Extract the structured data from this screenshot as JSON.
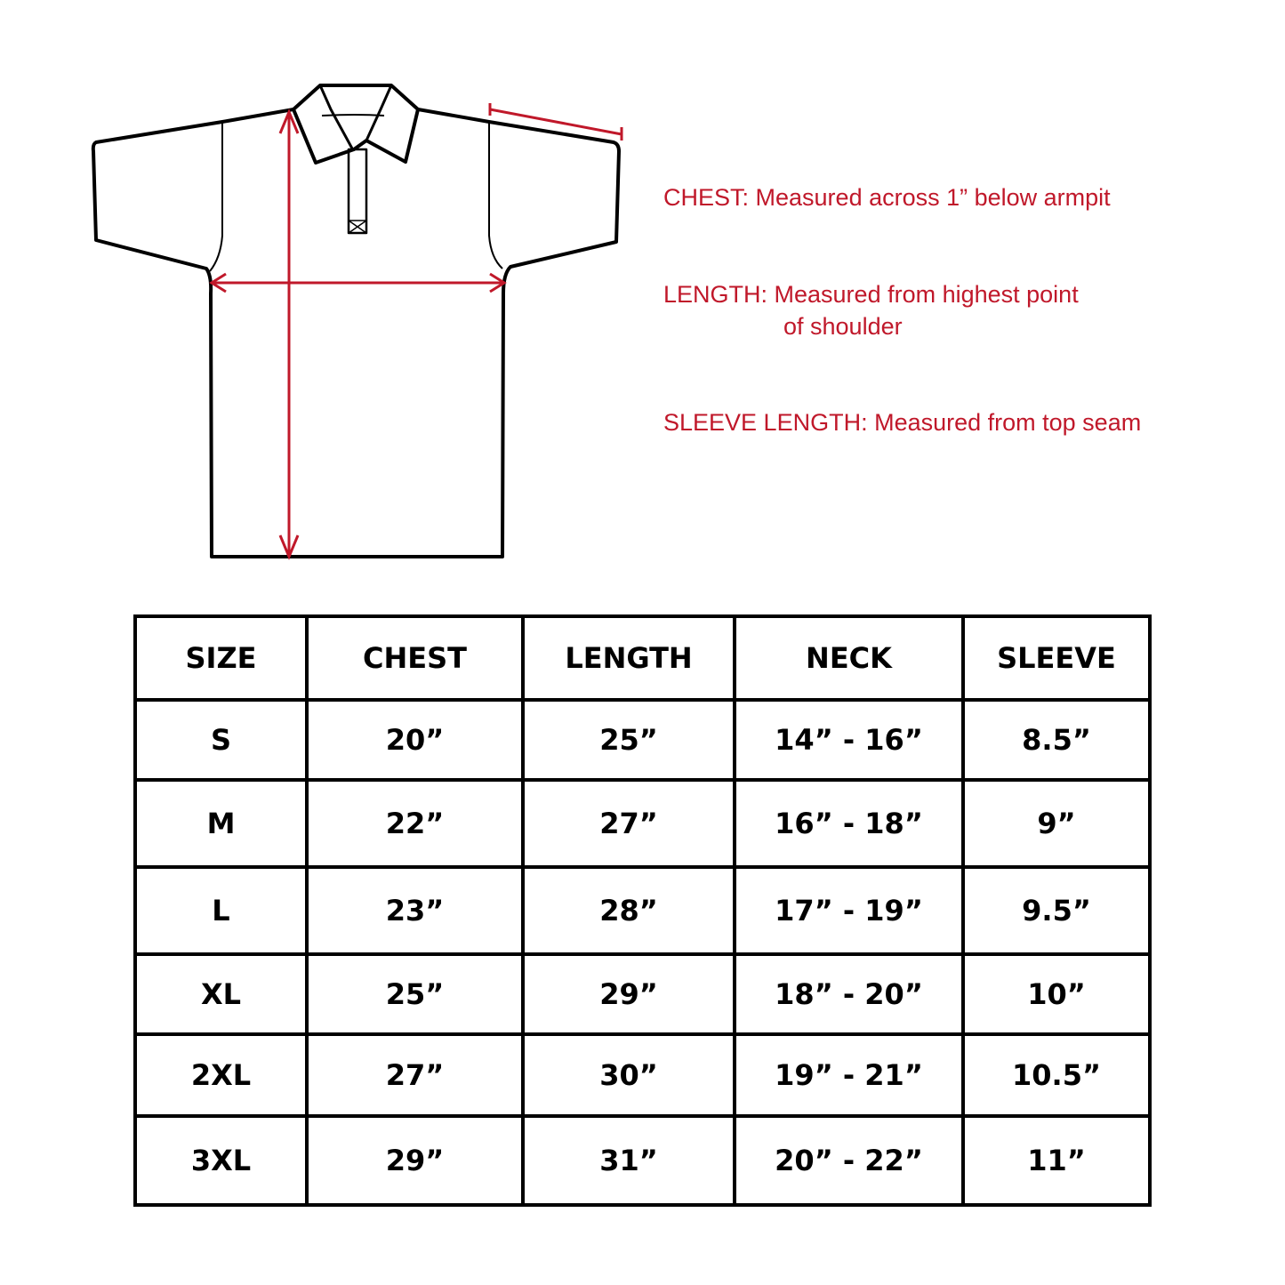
{
  "colors": {
    "accent": "#c0182a",
    "outline": "#000000"
  },
  "notes": {
    "chest": "CHEST:  Measured across 1” below armpit",
    "length_line1": "LENGTH: Measured from highest point",
    "length_line2": "of shoulder",
    "sleeve": "SLEEVE LENGTH: Measured from top seam"
  },
  "table": {
    "headers": [
      "SIZE",
      "CHEST",
      "LENGTH",
      "NECK",
      "SLEEVE"
    ],
    "rows": [
      [
        "S",
        "20”",
        "25”",
        "14” - 16”",
        "8.5”"
      ],
      [
        "M",
        "22”",
        "27”",
        "16” - 18”",
        "9”"
      ],
      [
        "L",
        "23”",
        "28”",
        "17” - 19”",
        "9.5”"
      ],
      [
        "XL",
        "25”",
        "29”",
        "18” - 20”",
        "10”"
      ],
      [
        "2XL",
        "27”",
        "30”",
        "19” - 21”",
        "10.5”"
      ],
      [
        "3XL",
        "29”",
        "31”",
        "20” - 22”",
        "11”"
      ]
    ]
  }
}
